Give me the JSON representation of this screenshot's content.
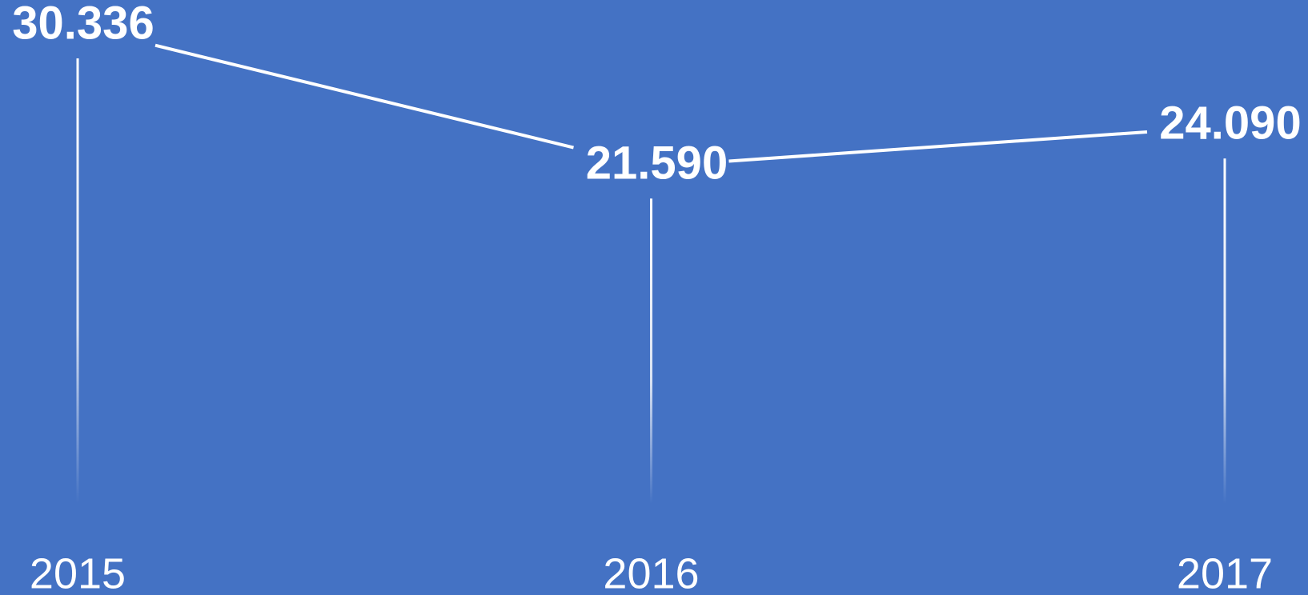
{
  "chart_data": {
    "type": "line",
    "categories": [
      "2015",
      "2016",
      "2017"
    ],
    "values": [
      30.336,
      21.59,
      24.09
    ],
    "value_labels": [
      "30.336",
      "21.590",
      "24.090"
    ],
    "color": "#ffffff",
    "background": "#4472c4"
  }
}
